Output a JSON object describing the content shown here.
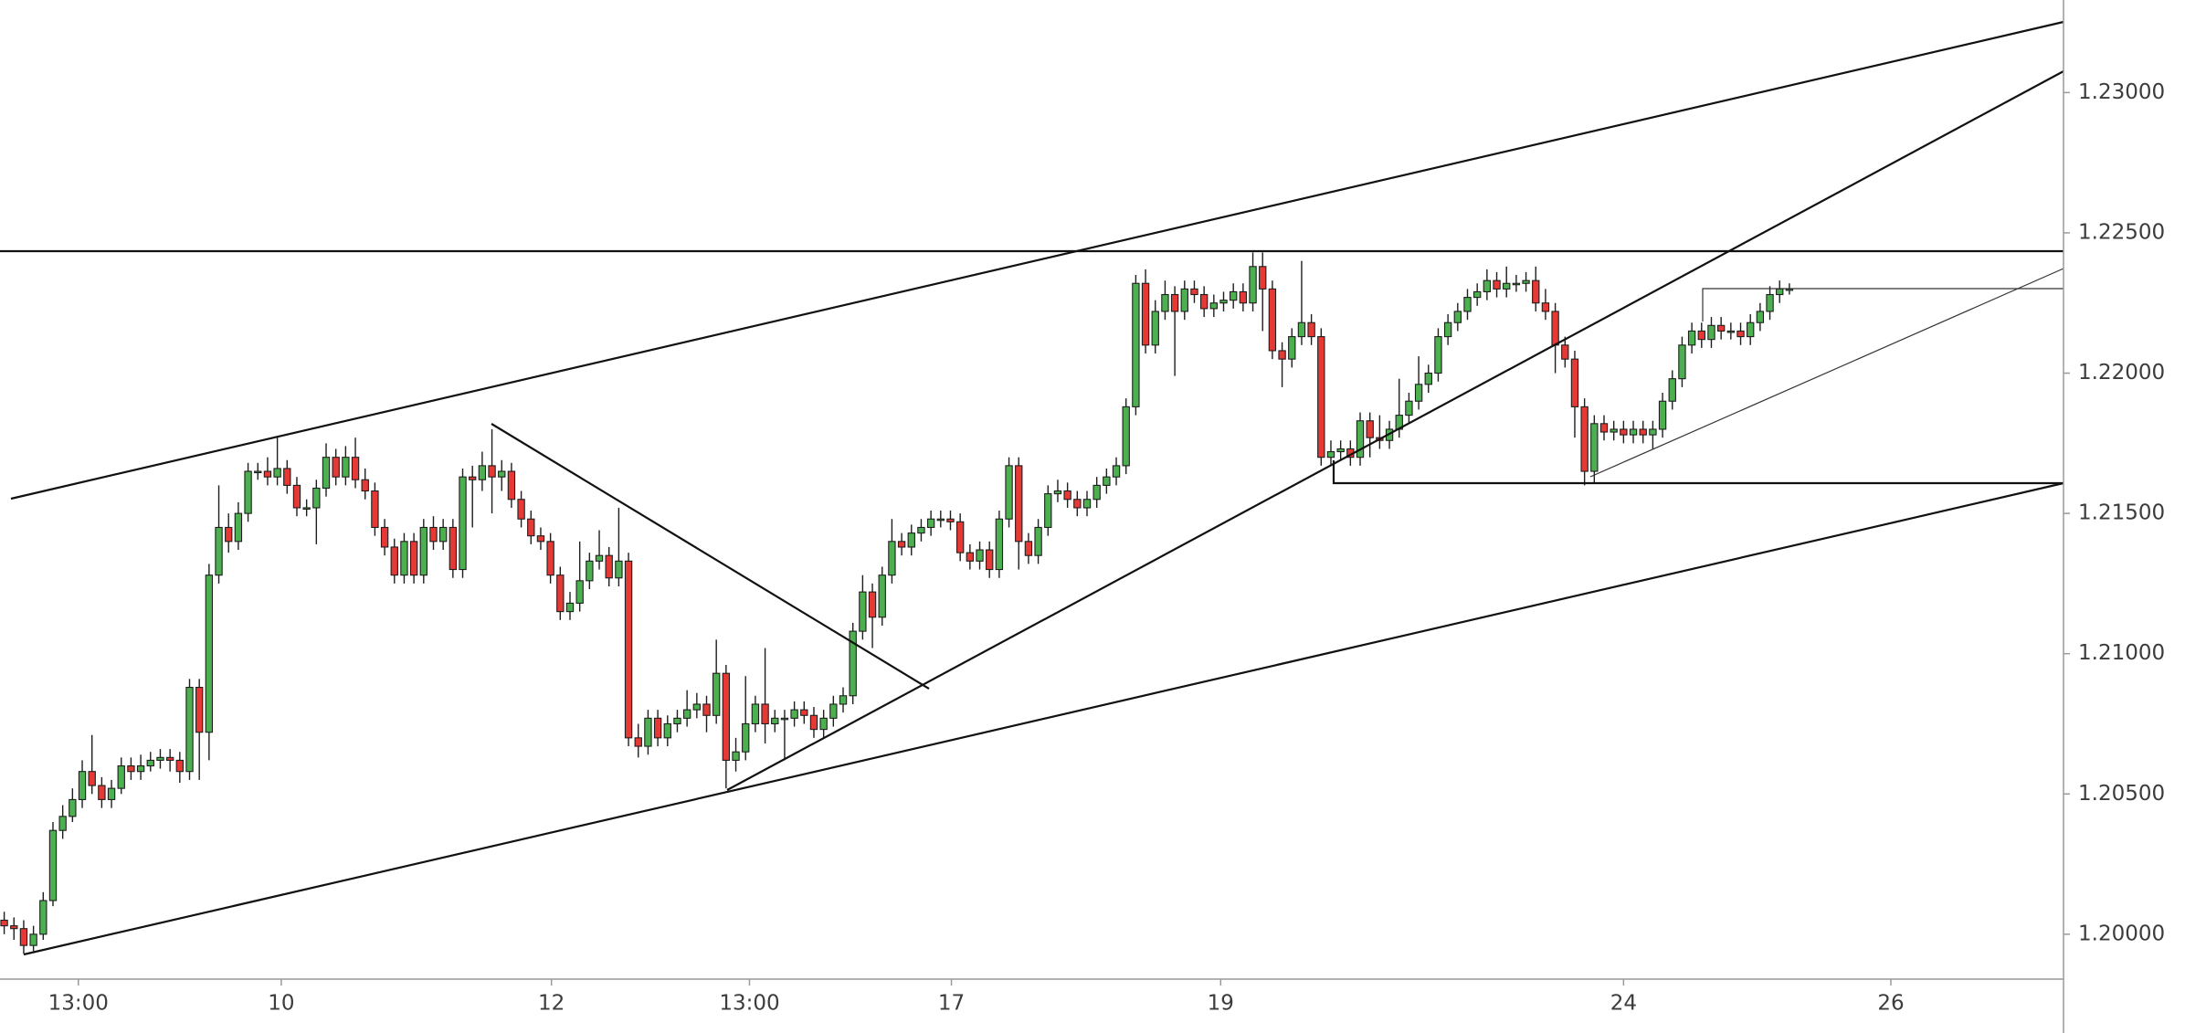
{
  "chart_data": {
    "type": "candlestick",
    "open": [
      1.2005,
      1.2003,
      1.2002,
      1.1996,
      1.2,
      1.2012,
      1.2037,
      1.2042,
      1.2048,
      1.2058,
      1.2053,
      1.2048,
      1.2052,
      1.206,
      1.2058,
      1.206,
      1.2062,
      1.2063,
      1.2062,
      1.2058,
      1.2088,
      1.2072,
      1.2128,
      1.2145,
      1.214,
      1.215,
      1.2165,
      1.2165,
      1.2163,
      1.2166,
      1.216,
      1.2152,
      1.2152,
      1.2159,
      1.217,
      1.2163,
      1.217,
      1.2162,
      1.2158,
      1.2145,
      1.2138,
      1.2128,
      1.214,
      1.2128,
      1.2145,
      1.214,
      1.2145,
      1.213,
      1.2163,
      1.2162,
      1.2167,
      1.2163,
      1.2165,
      1.2155,
      1.2148,
      1.2142,
      1.214,
      1.2128,
      1.2115,
      1.2118,
      1.2126,
      1.2133,
      1.2135,
      1.2127,
      1.2133,
      1.207,
      1.2067,
      1.2077,
      1.207,
      1.2075,
      1.2077,
      1.208,
      1.2082,
      1.2078,
      1.2093,
      1.2062,
      1.2065,
      1.2075,
      1.2082,
      1.2075,
      1.2077,
      1.2077,
      1.208,
      1.2078,
      1.2073,
      1.2077,
      1.2082,
      1.2085,
      1.2108,
      1.2122,
      1.2113,
      1.2128,
      1.214,
      1.2138,
      1.2143,
      1.2145,
      1.2148,
      1.2148,
      1.2147,
      1.2136,
      1.2133,
      1.2137,
      1.213,
      1.2148,
      1.2167,
      1.214,
      1.2135,
      1.2145,
      1.2157,
      1.2158,
      1.2155,
      1.2152,
      1.2155,
      1.216,
      1.2163,
      1.2167,
      1.2188,
      1.2232,
      1.221,
      1.2222,
      1.2228,
      1.2222,
      1.223,
      1.2228,
      1.2223,
      1.2225,
      1.2226,
      1.2229,
      1.2225,
      1.2238,
      1.223,
      1.2208,
      1.2205,
      1.2213,
      1.2218,
      1.2213,
      1.217,
      1.2172,
      1.2173,
      1.217,
      1.2183,
      1.2177,
      1.2176,
      1.218,
      1.2185,
      1.219,
      1.2196,
      1.22,
      1.2213,
      1.2218,
      1.2222,
      1.2227,
      1.2229,
      1.2233,
      1.223,
      1.2232,
      1.2232,
      1.2233,
      1.2225,
      1.2222,
      1.221,
      1.2205,
      1.2188,
      1.2165,
      1.2182,
      1.2179,
      1.218,
      1.2178,
      1.218,
      1.2178,
      1.218,
      1.219,
      1.2198,
      1.221,
      1.2215,
      1.2212,
      1.2217,
      1.2215,
      1.2215,
      1.2213,
      1.2218,
      1.2222,
      1.2228,
      1.223
    ],
    "high": [
      1.2008,
      1.2006,
      1.2005,
      1.2003,
      1.2015,
      1.204,
      1.2046,
      1.2052,
      1.2062,
      1.2071,
      1.2056,
      1.2055,
      1.2063,
      1.2063,
      1.2064,
      1.2065,
      1.2066,
      1.2066,
      1.2065,
      1.2091,
      1.2091,
      1.2132,
      1.216,
      1.215,
      1.2154,
      1.2168,
      1.2168,
      1.217,
      1.2177,
      1.2169,
      1.2163,
      1.2155,
      1.2162,
      1.2175,
      1.2173,
      1.2174,
      1.2177,
      1.2166,
      1.2161,
      1.2148,
      1.2141,
      1.2143,
      1.2143,
      1.2148,
      1.2149,
      1.2148,
      1.2148,
      1.2166,
      1.2167,
      1.2172,
      1.218,
      1.2169,
      1.2168,
      1.2158,
      1.2151,
      1.2145,
      1.2143,
      1.2131,
      1.2122,
      1.214,
      1.2136,
      1.2144,
      1.2138,
      1.2152,
      1.2136,
      1.2075,
      1.208,
      1.208,
      1.2078,
      1.208,
      1.2087,
      1.2086,
      1.2085,
      1.2105,
      1.2096,
      1.207,
      1.2092,
      1.2085,
      1.2102,
      1.208,
      1.208,
      1.2083,
      1.2083,
      1.2081,
      1.208,
      1.2085,
      1.2088,
      1.2111,
      1.2128,
      1.2125,
      1.2131,
      1.2148,
      1.2143,
      1.2146,
      1.2148,
      1.2151,
      1.2151,
      1.2151,
      1.215,
      1.2139,
      1.214,
      1.214,
      1.2151,
      1.217,
      1.217,
      1.2143,
      1.2148,
      1.216,
      1.2162,
      1.2161,
      1.2158,
      1.2158,
      1.2163,
      1.2166,
      1.217,
      1.2191,
      1.2235,
      1.2237,
      1.2226,
      1.2233,
      1.2231,
      1.2233,
      1.2233,
      1.2231,
      1.2228,
      1.2229,
      1.2232,
      1.2232,
      1.2243,
      1.2243,
      1.2233,
      1.2211,
      1.2216,
      1.224,
      1.2221,
      1.2216,
      1.2176,
      1.2176,
      1.2176,
      1.2186,
      1.2186,
      1.2185,
      1.2183,
      1.2198,
      1.2193,
      1.2206,
      1.2203,
      1.2216,
      1.2221,
      1.2225,
      1.223,
      1.2232,
      1.2237,
      1.2236,
      1.2238,
      1.2235,
      1.2236,
      1.2238,
      1.223,
      1.2225,
      1.2213,
      1.2208,
      1.2191,
      1.2185,
      1.2185,
      1.2183,
      1.2183,
      1.2183,
      1.2183,
      1.2183,
      1.2193,
      1.2201,
      1.2213,
      1.2218,
      1.2218,
      1.222,
      1.222,
      1.2218,
      1.2218,
      1.2221,
      1.2225,
      1.2231,
      1.2233,
      1.2232
    ],
    "low": [
      1.2,
      1.1998,
      1.1993,
      1.1994,
      1.1998,
      1.201,
      1.2034,
      1.204,
      1.2045,
      1.205,
      1.2045,
      1.2045,
      1.205,
      1.2055,
      1.2055,
      1.2058,
      1.2059,
      1.2058,
      1.2054,
      1.2055,
      1.2055,
      1.2062,
      1.2125,
      1.2136,
      1.2137,
      1.2147,
      1.2162,
      1.216,
      1.216,
      1.2157,
      1.2149,
      1.2149,
      1.2139,
      1.2156,
      1.216,
      1.216,
      1.2159,
      1.2155,
      1.2142,
      1.2135,
      1.2125,
      1.2125,
      1.2125,
      1.2125,
      1.2137,
      1.2137,
      1.2127,
      1.2127,
      1.2145,
      1.2158,
      1.215,
      1.2158,
      1.2152,
      1.2145,
      1.2139,
      1.2137,
      1.2125,
      1.2112,
      1.2112,
      1.2115,
      1.2123,
      1.213,
      1.2124,
      1.2124,
      1.2067,
      1.2063,
      1.2064,
      1.2067,
      1.2067,
      1.2072,
      1.2074,
      1.2077,
      1.2072,
      1.2075,
      1.2052,
      1.2058,
      1.2062,
      1.2072,
      1.2068,
      1.2072,
      1.2062,
      1.2074,
      1.2075,
      1.207,
      1.207,
      1.2074,
      1.2079,
      1.2082,
      1.2105,
      1.2102,
      1.211,
      1.2125,
      1.2135,
      1.2135,
      1.214,
      1.2142,
      1.2145,
      1.2144,
      1.2133,
      1.213,
      1.213,
      1.2127,
      1.2127,
      1.2145,
      1.213,
      1.2132,
      1.2132,
      1.2142,
      1.2154,
      1.2152,
      1.2149,
      1.2149,
      1.2152,
      1.2157,
      1.216,
      1.2164,
      1.2185,
      1.2207,
      1.2207,
      1.2219,
      1.2199,
      1.2219,
      1.2225,
      1.222,
      1.222,
      1.2222,
      1.2223,
      1.2222,
      1.2222,
      1.2215,
      1.2205,
      1.2195,
      1.2202,
      1.221,
      1.221,
      1.2167,
      1.2167,
      1.2169,
      1.2167,
      1.2167,
      1.217,
      1.2173,
      1.2173,
      1.2177,
      1.2182,
      1.2187,
      1.2193,
      1.2197,
      1.221,
      1.2215,
      1.2219,
      1.2224,
      1.2226,
      1.2227,
      1.2227,
      1.2229,
      1.2229,
      1.2222,
      1.2219,
      1.22,
      1.2202,
      1.2177,
      1.216,
      1.2161,
      1.2176,
      1.2176,
      1.2175,
      1.2175,
      1.2175,
      1.2173,
      1.2177,
      1.2187,
      1.2195,
      1.2207,
      1.2209,
      1.2209,
      1.2212,
      1.2212,
      1.221,
      1.221,
      1.2215,
      1.2219,
      1.2225,
      1.2228
    ],
    "close": [
      1.2003,
      1.2002,
      1.1996,
      1.2,
      1.2012,
      1.2037,
      1.2042,
      1.2048,
      1.2058,
      1.2053,
      1.2048,
      1.2052,
      1.206,
      1.2058,
      1.206,
      1.2062,
      1.2063,
      1.2062,
      1.2058,
      1.2088,
      1.2072,
      1.2128,
      1.2145,
      1.214,
      1.215,
      1.2165,
      1.2165,
      1.2163,
      1.2166,
      1.216,
      1.2152,
      1.2152,
      1.2159,
      1.217,
      1.2163,
      1.217,
      1.2162,
      1.2158,
      1.2145,
      1.2138,
      1.2128,
      1.214,
      1.2128,
      1.2145,
      1.214,
      1.2145,
      1.213,
      1.2163,
      1.2162,
      1.2167,
      1.2163,
      1.2165,
      1.2155,
      1.2148,
      1.2142,
      1.214,
      1.2128,
      1.2115,
      1.2118,
      1.2126,
      1.2133,
      1.2135,
      1.2127,
      1.2133,
      1.207,
      1.2067,
      1.2077,
      1.207,
      1.2075,
      1.2077,
      1.208,
      1.2082,
      1.2078,
      1.2093,
      1.2062,
      1.2065,
      1.2075,
      1.2082,
      1.2075,
      1.2077,
      1.2077,
      1.208,
      1.2078,
      1.2073,
      1.2077,
      1.2082,
      1.2085,
      1.2108,
      1.2122,
      1.2113,
      1.2128,
      1.214,
      1.2138,
      1.2143,
      1.2145,
      1.2148,
      1.2148,
      1.2147,
      1.2136,
      1.2133,
      1.2137,
      1.213,
      1.2148,
      1.2167,
      1.214,
      1.2135,
      1.2145,
      1.2157,
      1.2158,
      1.2155,
      1.2152,
      1.2155,
      1.216,
      1.2163,
      1.2167,
      1.2188,
      1.2232,
      1.221,
      1.2222,
      1.2228,
      1.2222,
      1.223,
      1.2228,
      1.2223,
      1.2225,
      1.2226,
      1.2229,
      1.2225,
      1.2238,
      1.223,
      1.2208,
      1.2205,
      1.2213,
      1.2218,
      1.2213,
      1.217,
      1.2172,
      1.2173,
      1.217,
      1.2183,
      1.2177,
      1.2176,
      1.218,
      1.2185,
      1.219,
      1.2196,
      1.22,
      1.2213,
      1.2218,
      1.2222,
      1.2227,
      1.2229,
      1.2233,
      1.223,
      1.2232,
      1.2232,
      1.2233,
      1.2225,
      1.2222,
      1.221,
      1.2205,
      1.2188,
      1.2165,
      1.2182,
      1.2179,
      1.218,
      1.2178,
      1.218,
      1.2178,
      1.218,
      1.219,
      1.2198,
      1.221,
      1.2215,
      1.2212,
      1.2217,
      1.2215,
      1.2215,
      1.2213,
      1.2218,
      1.2222,
      1.2228,
      1.223,
      1.223
    ],
    "up_color": "#4caf50",
    "down_color": "#e53935",
    "wick_color": "#1e1e1e",
    "xlim": [
      -0.43,
      211.1
    ],
    "xticks": [
      {
        "value": 7.6,
        "label": "13:00"
      },
      {
        "value": 28.4,
        "label": "10"
      },
      {
        "value": 56.1,
        "label": "12"
      },
      {
        "value": 76.4,
        "label": "13:00"
      },
      {
        "value": 97.1,
        "label": "17"
      },
      {
        "value": 124.7,
        "label": "19"
      },
      {
        "value": 166,
        "label": "24"
      },
      {
        "value": 193.4,
        "label": "26"
      }
    ],
    "ylim": [
      1.1984,
      1.2333
    ],
    "yticks": [
      {
        "value": 1.2,
        "label": "1.20000"
      },
      {
        "value": 1.205,
        "label": "1.20500"
      },
      {
        "value": 1.21,
        "label": "1.21000"
      },
      {
        "value": 1.215,
        "label": "1.21500"
      },
      {
        "value": 1.22,
        "label": "1.22000"
      },
      {
        "value": 1.225,
        "label": "1.22500"
      },
      {
        "value": 1.23,
        "label": "1.23000"
      }
    ],
    "grid": false
  }
}
